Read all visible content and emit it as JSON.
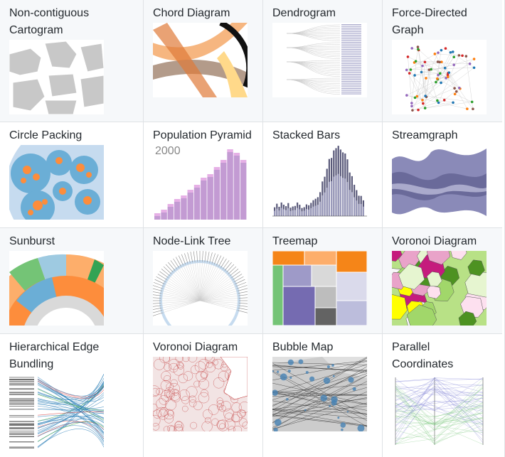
{
  "examples": [
    {
      "title": "Non-contiguous Cartogram",
      "thumb": "cartogram"
    },
    {
      "title": "Chord Diagram",
      "thumb": "chord"
    },
    {
      "title": "Dendrogram",
      "thumb": "dendrogram"
    },
    {
      "title": "Force-Directed Graph",
      "thumb": "force"
    },
    {
      "title": "Circle Packing",
      "thumb": "pack"
    },
    {
      "title": "Population Pyramid",
      "thumb": "pyramid",
      "thumb_label": "2000"
    },
    {
      "title": "Stacked Bars",
      "thumb": "stacked"
    },
    {
      "title": "Streamgraph",
      "thumb": "stream"
    },
    {
      "title": "Sunburst",
      "thumb": "sunburst"
    },
    {
      "title": "Node-Link Tree",
      "thumb": "tree"
    },
    {
      "title": "Treemap",
      "thumb": "treemap"
    },
    {
      "title": "Voronoi Diagram",
      "thumb": "voronoi"
    },
    {
      "title": "Hierarchical Edge Bundling",
      "thumb": "bundling"
    },
    {
      "title": "Voronoi Diagram",
      "thumb": "voronoi-map"
    },
    {
      "title": "Bubble Map",
      "thumb": "bubble"
    },
    {
      "title": "Parallel Coordinates",
      "thumb": "parallel"
    }
  ],
  "colors": {
    "row_alt": "#f6f8fa",
    "border": "#dfe2e5",
    "text": "#24292e"
  }
}
